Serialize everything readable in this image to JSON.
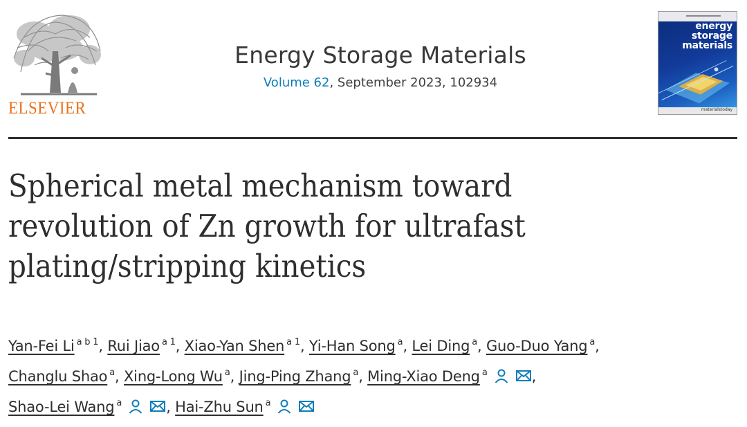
{
  "header": {
    "publisher_logo": "Elsevier tree logo",
    "publisher_name": "ELSEVIER",
    "journal_title": "Energy Storage Materials",
    "volume_link": "Volume 62",
    "issue_details": ", September 2023, 102934",
    "cover": {
      "title_line1": "energy",
      "title_line2": "storage",
      "title_line3": "materials",
      "footer": "materialstoday"
    }
  },
  "article": {
    "title": "Spherical metal mechanism toward revolution of Zn growth for ultrafast plating/stripping kinetics",
    "authors": [
      {
        "name": "Yan-Fei Li",
        "sup": "a b 1",
        "sep": ", "
      },
      {
        "name": "Rui Jiao",
        "sup": "a 1",
        "sep": ", "
      },
      {
        "name": "Xiao-Yan Shen",
        "sup": "a 1",
        "sep": ", "
      },
      {
        "name": "Yi-Han Song",
        "sup": "a",
        "sep": ", "
      },
      {
        "name": "Lei Ding",
        "sup": "a",
        "sep": ", "
      },
      {
        "name": "Guo-Duo Yang",
        "sup": "a",
        "sep": ","
      },
      {
        "name": "Changlu Shao",
        "sup": "a",
        "sep": ", "
      },
      {
        "name": "Xing-Long Wu",
        "sup": "a",
        "sep": ", "
      },
      {
        "name": "Jing-Ping Zhang",
        "sup": "a",
        "sep": ", "
      },
      {
        "name": "Ming-Xiao Deng",
        "sup": "a",
        "sep": ","
      },
      {
        "name": "Shao-Lei Wang",
        "sup": "a",
        "sep": ", "
      },
      {
        "name": "Hai-Zhu Sun",
        "sup": "a",
        "sep": ""
      }
    ]
  },
  "icons": {
    "person": "person-icon",
    "email": "envelope-icon"
  },
  "colors": {
    "elsevier_orange": "#e9711c",
    "link_blue": "#0c7dbb",
    "text": "#2e2e2e"
  }
}
